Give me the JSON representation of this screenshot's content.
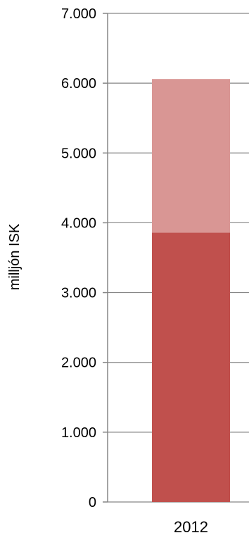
{
  "chart_data": {
    "type": "bar",
    "stacked": true,
    "categories": [
      "2012"
    ],
    "series": [
      {
        "values": [
          3860
        ],
        "color": "#c0504d"
      },
      {
        "values": [
          2200
        ],
        "color": "#d99694"
      }
    ],
    "ylabel": "milljón ISK",
    "xlabel": "",
    "ylim": [
      0,
      7000
    ],
    "yticks": [
      0,
      1000,
      2000,
      3000,
      4000,
      5000,
      6000,
      7000
    ],
    "ytick_labels": [
      "0",
      "1.000",
      "2.000",
      "3.000",
      "4.000",
      "5.000",
      "6.000",
      "7.000"
    ],
    "grid": true,
    "grid_color": "#868686",
    "axis_color": "#868686",
    "legend": "none"
  }
}
